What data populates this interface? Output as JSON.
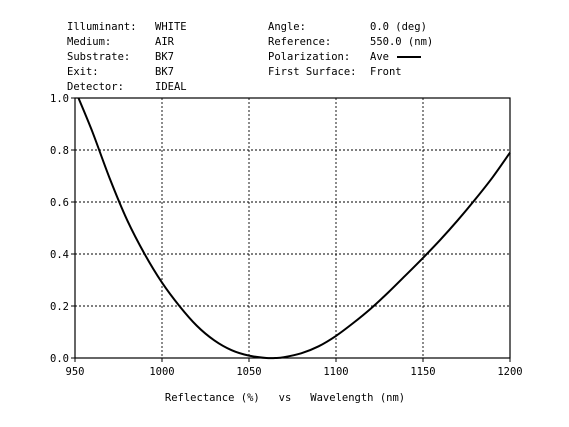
{
  "header": {
    "rows": [
      {
        "left_label": "Illuminant:",
        "left_value": "WHITE",
        "right_label": "Angle:",
        "right_value": "0.0 (deg)"
      },
      {
        "left_label": "Medium:",
        "left_value": "AIR",
        "right_label": "Reference:",
        "right_value": "550.0 (nm)"
      },
      {
        "left_label": "Substrate:",
        "left_value": "BK7",
        "right_label": "Polarization:",
        "right_value": "Ave"
      },
      {
        "left_label": "Exit:",
        "left_value": "BK7",
        "right_label": "First Surface:",
        "right_value": "Front"
      },
      {
        "left_label": "Detector:",
        "left_value": "IDEAL",
        "right_label": "",
        "right_value": ""
      }
    ]
  },
  "chart_data": {
    "type": "line",
    "title": "",
    "xlabel": "Reflectance (%)   vs   Wavelength (nm)",
    "ylabel": "",
    "xlim": [
      950,
      1200
    ],
    "ylim": [
      0.0,
      1.0
    ],
    "xticks": [
      950,
      1000,
      1050,
      1100,
      1150,
      1200
    ],
    "xtick_labels": [
      "950",
      "1000",
      "1050",
      "1100",
      "1150",
      "1200"
    ],
    "yticks": [
      0.0,
      0.2,
      0.4,
      0.6,
      0.8,
      1.0
    ],
    "ytick_labels": [
      "0.0",
      "0.2",
      "0.4",
      "0.6",
      "0.8",
      "1.0"
    ],
    "grid": true,
    "legend": "Ave",
    "series": [
      {
        "name": "Ave",
        "color": "#000000",
        "x": [
          952,
          960,
          970,
          980,
          990,
          1000,
          1010,
          1020,
          1030,
          1040,
          1050,
          1060,
          1065,
          1070,
          1080,
          1090,
          1100,
          1110,
          1120,
          1130,
          1140,
          1150,
          1160,
          1170,
          1180,
          1190,
          1200
        ],
        "y": [
          1.0,
          0.87,
          0.69,
          0.53,
          0.4,
          0.29,
          0.2,
          0.124,
          0.068,
          0.03,
          0.009,
          0.0,
          0.0,
          0.003,
          0.018,
          0.045,
          0.085,
          0.135,
          0.19,
          0.252,
          0.318,
          0.385,
          0.455,
          0.53,
          0.61,
          0.695,
          0.79
        ]
      }
    ]
  }
}
